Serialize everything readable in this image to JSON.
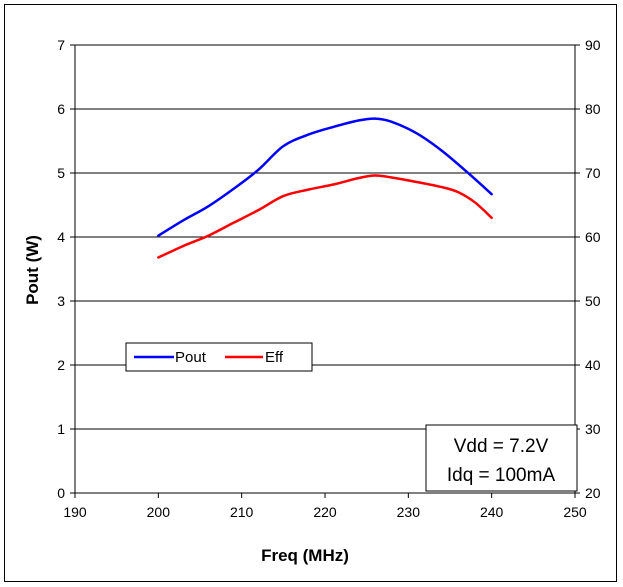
{
  "chart_data": {
    "type": "line",
    "xlabel": "Freq (MHz)",
    "ylabel": "Pout (W)",
    "xlim": [
      190,
      250
    ],
    "x_ticks": [
      190,
      200,
      210,
      220,
      230,
      240,
      250
    ],
    "ylim_left": [
      0,
      7
    ],
    "y_ticks_left": [
      0,
      1,
      2,
      3,
      4,
      5,
      6,
      7
    ],
    "ylim_right": [
      20,
      90
    ],
    "y_ticks_right": [
      20,
      30,
      40,
      50,
      60,
      70,
      80,
      90
    ],
    "grid": "horizontal",
    "legend_placement": "middle-left",
    "series": [
      {
        "name": "Pout",
        "axis": "left",
        "color": "#0000ff",
        "x": [
          200,
          203,
          206,
          209,
          212,
          215,
          218,
          221,
          224,
          226,
          228,
          231,
          234,
          237,
          240
        ],
        "y": [
          4.02,
          4.26,
          4.48,
          4.75,
          5.05,
          5.42,
          5.6,
          5.72,
          5.82,
          5.85,
          5.8,
          5.62,
          5.35,
          5.02,
          4.67
        ]
      },
      {
        "name": "Eff",
        "axis": "right",
        "color": "#ff0000",
        "x": [
          200,
          203,
          206,
          209,
          212,
          215,
          218,
          221,
          224,
          226,
          228,
          231,
          234,
          236,
          238,
          240
        ],
        "y": [
          56.8,
          58.6,
          60.2,
          62.2,
          64.2,
          66.4,
          67.4,
          68.2,
          69.2,
          69.6,
          69.3,
          68.6,
          67.8,
          67.0,
          65.4,
          63.0
        ]
      }
    ],
    "annotation": [
      "Vdd = 7.2V",
      "Idq = 100mA"
    ]
  }
}
